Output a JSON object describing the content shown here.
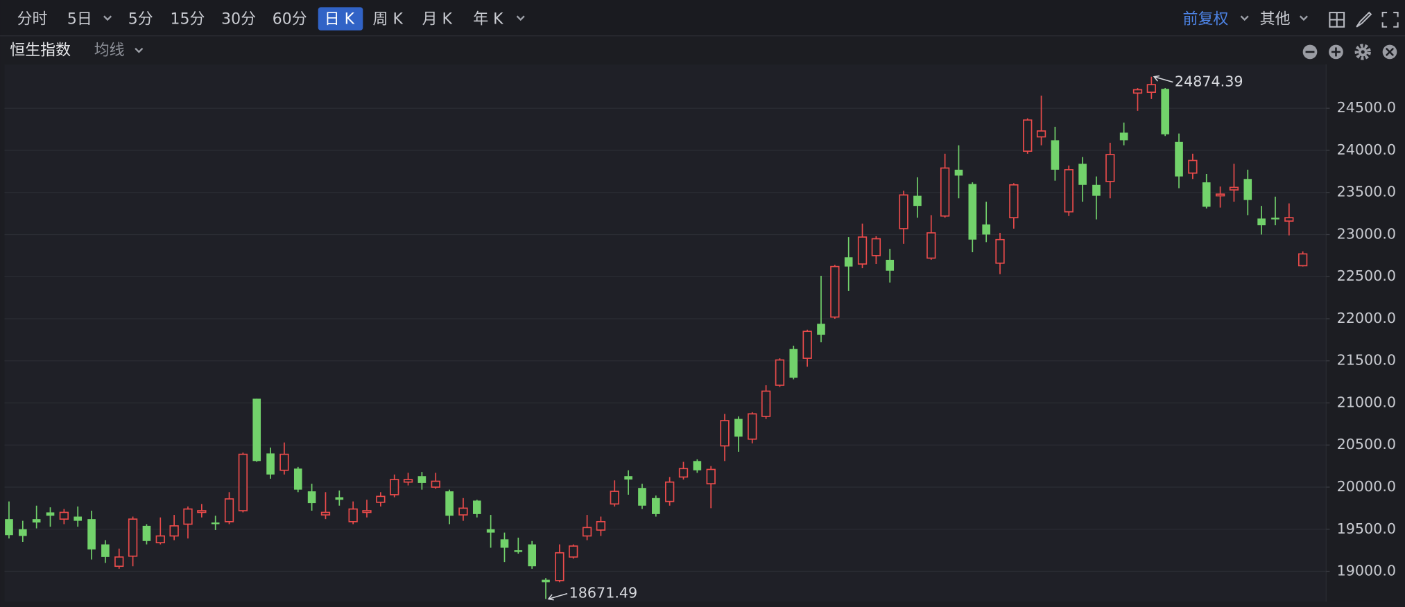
{
  "toolbar": {
    "periods": [
      "分时",
      "5日",
      "5分",
      "15分",
      "30分",
      "60分",
      "日 K",
      "周 K",
      "月 K",
      "年 K"
    ],
    "adjust": "前复权",
    "more": "其他",
    "indicator": "均线"
  },
  "chart_data": {
    "type": "candlestick",
    "title": "恒生指数",
    "up_color": "#ea4b4b",
    "down_color": "#72d26b",
    "grid": true,
    "ylim": [
      18640,
      25020
    ],
    "yticks": [
      {
        "value": 19000,
        "label": "19000.0"
      },
      {
        "value": 19500,
        "label": "19500.0"
      },
      {
        "value": 20000,
        "label": "20000.0"
      },
      {
        "value": 20500,
        "label": "20500.0"
      },
      {
        "value": 21000,
        "label": "21000.0"
      },
      {
        "value": 21500,
        "label": "21500.0"
      },
      {
        "value": 22000,
        "label": "22000.0"
      },
      {
        "value": 22500,
        "label": "22500.0"
      },
      {
        "value": 23000,
        "label": "23000.0"
      },
      {
        "value": 23500,
        "label": "23500.0"
      },
      {
        "value": 24000,
        "label": "24000.0"
      },
      {
        "value": 24500,
        "label": "24500.0"
      }
    ],
    "open": [
      19620,
      19500,
      19620,
      19700,
      19620,
      19650,
      19620,
      19320,
      19060,
      19180,
      19540,
      19340,
      19420,
      19560,
      19700,
      19580,
      19590,
      19720,
      21050,
      20400,
      20200,
      20220,
      19950,
      19670,
      19880,
      19590,
      19700,
      19820,
      19910,
      20060,
      20130,
      20000,
      19950,
      19670,
      19840,
      19500,
      19380,
      19250,
      19320,
      18900,
      18890,
      19170,
      19420,
      19490,
      19800,
      20130,
      19990,
      19870,
      19830,
      20120,
      20310,
      20040,
      20490,
      20810,
      20570,
      20840,
      21210,
      21640,
      21530,
      21940,
      22020,
      22730,
      22650,
      22750,
      22700,
      23070,
      23460,
      22720,
      23220,
      23770,
      23600,
      23120,
      22660,
      23200,
      23990,
      24160,
      24120,
      23270,
      23840,
      23590,
      23630,
      24210,
      24680,
      24690,
      24730,
      24100,
      23730,
      23620,
      23460,
      23530,
      23660,
      23190,
      23200,
      23160,
      22630
    ],
    "high": [
      19830,
      19600,
      19780,
      19760,
      19740,
      19770,
      19720,
      19370,
      19270,
      19650,
      19560,
      19640,
      19670,
      19770,
      19800,
      19660,
      19940,
      20410,
      21050,
      20470,
      20530,
      20240,
      20040,
      19940,
      19960,
      19830,
      19850,
      19940,
      20150,
      20170,
      20180,
      20170,
      19970,
      19870,
      19850,
      19670,
      19460,
      19400,
      19360,
      18920,
      19320,
      19320,
      19670,
      19650,
      20080,
      20200,
      20040,
      19900,
      20120,
      20300,
      20330,
      20250,
      20870,
      20840,
      20890,
      21210,
      21530,
      21680,
      21870,
      22510,
      22640,
      22970,
      23130,
      22980,
      22830,
      23520,
      23680,
      23230,
      23960,
      24060,
      23620,
      23390,
      23020,
      23610,
      24380,
      24650,
      24280,
      23820,
      23920,
      23690,
      24090,
      24330,
      24740,
      24874.39,
      24740,
      24200,
      23960,
      23720,
      23570,
      23840,
      23770,
      23340,
      23450,
      23370,
      22800
    ],
    "low": [
      19390,
      19350,
      19510,
      19530,
      19560,
      19530,
      19140,
      19100,
      19030,
      19060,
      19320,
      19320,
      19370,
      19390,
      19640,
      19490,
      19560,
      19700,
      20300,
      20100,
      20150,
      19940,
      19720,
      19620,
      19780,
      19560,
      19640,
      19770,
      19880,
      20020,
      19970,
      19980,
      19560,
      19600,
      19640,
      19280,
      19110,
      19210,
      19030,
      18671.49,
      18870,
      19150,
      19370,
      19420,
      19770,
      19910,
      19740,
      19650,
      19780,
      20090,
      20170,
      19750,
      20310,
      20420,
      20520,
      20810,
      21190,
      21280,
      21430,
      21720,
      22000,
      22330,
      22600,
      22650,
      22430,
      22890,
      23200,
      22700,
      23200,
      23430,
      22790,
      22910,
      22530,
      23070,
      23960,
      24060,
      23640,
      23220,
      23390,
      23180,
      23430,
      24060,
      24470,
      24610,
      24170,
      23550,
      23660,
      23310,
      23320,
      23390,
      23230,
      23000,
      23110,
      22990,
      22620
    ],
    "close": [
      19430,
      19420,
      19580,
      19660,
      19700,
      19600,
      19260,
      19170,
      19170,
      19620,
      19360,
      19420,
      19540,
      19740,
      19720,
      19560,
      19860,
      20390,
      20310,
      20150,
      20390,
      19970,
      19810,
      19700,
      19850,
      19740,
      19720,
      19890,
      20090,
      20090,
      20050,
      20070,
      19660,
      19750,
      19680,
      19460,
      19280,
      19230,
      19060,
      18870,
      19220,
      19300,
      19520,
      19590,
      19950,
      20090,
      19780,
      19680,
      20060,
      20220,
      20200,
      20210,
      20790,
      20600,
      20870,
      21140,
      21510,
      21300,
      21850,
      21810,
      22620,
      22620,
      22970,
      22950,
      22570,
      23470,
      23340,
      23020,
      23790,
      23700,
      22940,
      23000,
      22940,
      23590,
      24360,
      24230,
      23770,
      23770,
      23590,
      23460,
      23950,
      24120,
      24720,
      24780,
      24190,
      23690,
      23880,
      23330,
      23480,
      23560,
      23410,
      23110,
      23180,
      23200,
      22770
    ]
  }
}
